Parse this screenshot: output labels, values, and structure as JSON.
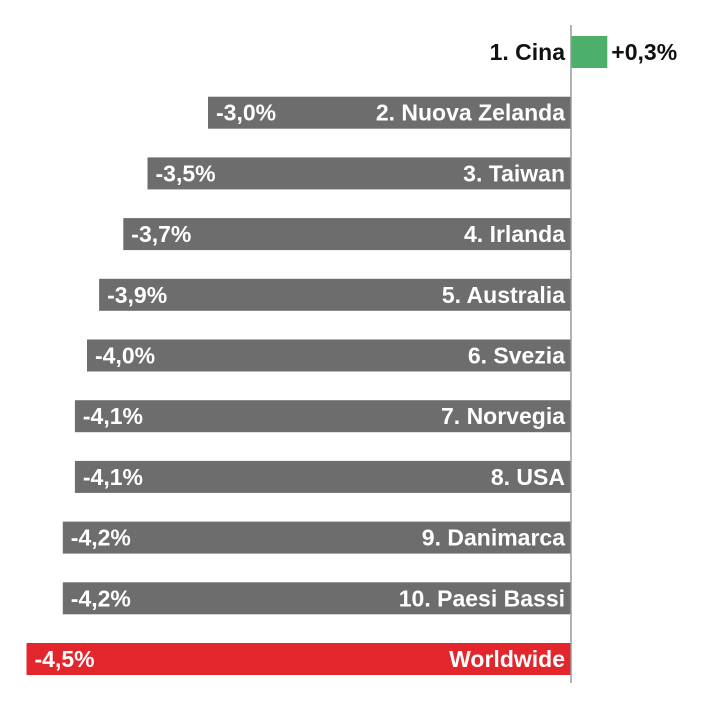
{
  "chart_data": {
    "type": "bar",
    "orientation": "horizontal",
    "categories": [
      "1. Cina",
      "2. Nuova Zelanda",
      "3. Taiwan",
      "4. Irlanda",
      "5. Australia",
      "6. Svezia",
      "7. Norvegia",
      "8. USA",
      "9. Danimarca",
      "10. Paesi Bassi",
      "Worldwide"
    ],
    "values": [
      0.3,
      -3.0,
      -3.5,
      -3.7,
      -3.9,
      -4.0,
      -4.1,
      -4.1,
      -4.2,
      -4.2,
      -4.5
    ],
    "value_labels": [
      "+0,3%",
      "-3,0%",
      "-3,5%",
      "-3,7%",
      "-3,9%",
      "-4,0%",
      "-4,1%",
      "-4,1%",
      "-4,2%",
      "-4,2%",
      "-4,5%"
    ],
    "title": "",
    "xlabel": "",
    "ylabel": "",
    "xlim": [
      -4.5,
      0.3
    ],
    "grid": false,
    "legend": "none",
    "colors": {
      "positive": "#4caf6a",
      "negative": "#6d6d6d",
      "highlight": "#e3262b",
      "axis": "#9a9a9a",
      "text_dark": "#111111",
      "text_light": "#ffffff"
    }
  }
}
